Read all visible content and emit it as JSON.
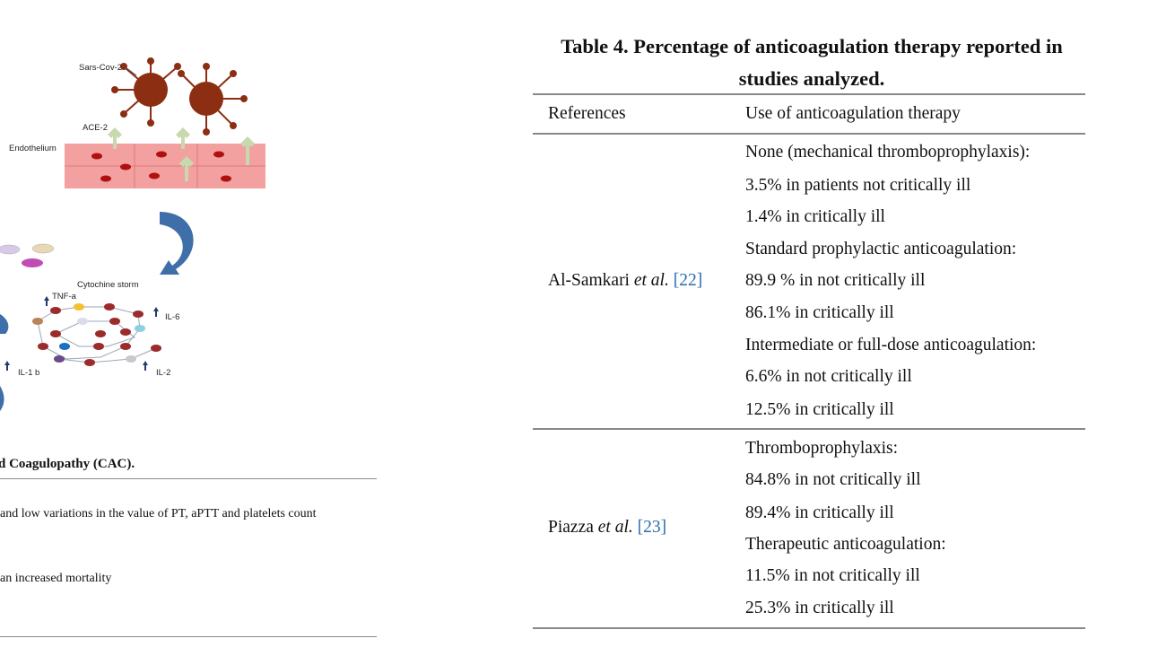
{
  "figure": {
    "labels": {
      "virus": "Sars-Cov-2",
      "receptor": "ACE-2",
      "endothelium": "Endothelium",
      "storm": "Cytochine storm",
      "tnf": "TNF-a",
      "il6": "IL-6",
      "il1b": "IL-1 b",
      "il2": "IL-2"
    }
  },
  "left_text": {
    "caption": "d Coagulopathy (CAC).",
    "line1": "and low variations in the value of PT, aPTT and platelets count",
    "line2": "an increased mortality"
  },
  "table": {
    "title_line1": "Table 4. Percentage of anticoagulation therapy reported in",
    "title_line2": "studies analyzed.",
    "headers": [
      "References",
      "Use of anticoagulation therapy"
    ],
    "rows": [
      {
        "ref_author": "Al-Samkari",
        "ref_etal": "et al.",
        "ref_num": "[22]",
        "items": [
          "None (mechanical thromboprophylaxis):",
          "3.5% in patients not critically ill",
          "1.4% in critically ill",
          "Standard prophylactic anticoagulation:",
          "89.9 % in not critically ill",
          "86.1% in critically ill",
          "Intermediate or full-dose anticoagulation:",
          "6.6% in not critically ill",
          "12.5% in critically ill"
        ]
      },
      {
        "ref_author": "Piazza",
        "ref_etal": "et al.",
        "ref_num": "[23]",
        "items": [
          "Thromboprophylaxis:",
          "84.8% in not critically ill",
          "89.4% in critically ill",
          "Therapeutic anticoagulation:",
          "11.5% in not critically ill",
          "25.3% in critically ill"
        ]
      }
    ]
  },
  "colors": {
    "virus": "#8b2e12",
    "endothelium": "#f2a0a0",
    "receptor": "#c8d9b0",
    "arrow": "#3f6fa8",
    "link": "#2b6cb0"
  }
}
